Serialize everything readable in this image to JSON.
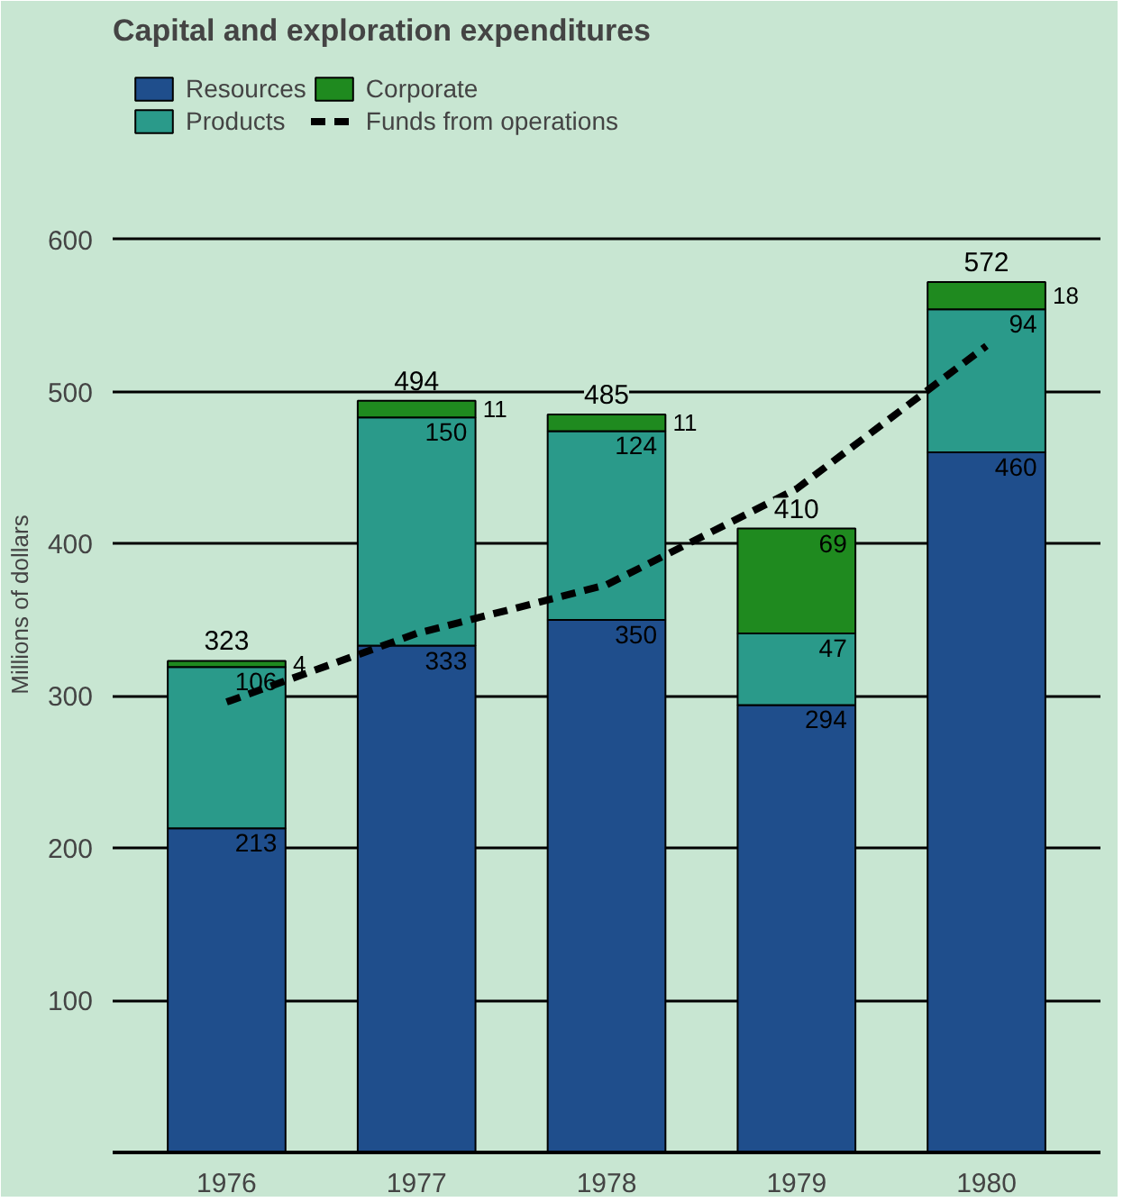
{
  "chart_data": {
    "type": "bar",
    "title": "Capital and exploration expenditures",
    "ylabel": "Millions of dollars",
    "categories": [
      "1976",
      "1977",
      "1978",
      "1979",
      "1980"
    ],
    "stacked": true,
    "series": [
      {
        "name": "Resources",
        "color": "#1f4e8c",
        "values": [
          213,
          333,
          350,
          294,
          460
        ],
        "value_labels": [
          "213",
          "333",
          "350",
          "294",
          "460"
        ]
      },
      {
        "name": "Products",
        "color": "#2a9a8a",
        "values": [
          106,
          150,
          124,
          47,
          94
        ],
        "value_labels": [
          "106",
          "150",
          "124",
          "47",
          "94"
        ]
      },
      {
        "name": "Corporate",
        "color": "#1f8a1f",
        "values": [
          4,
          11,
          11,
          69,
          18
        ],
        "value_labels": [
          "4",
          "11",
          "11",
          "69",
          "18"
        ]
      },
      {
        "name": "Funds from operations",
        "type": "line",
        "color": "#000000",
        "line_style": "dashed",
        "values": [
          296,
          341,
          373,
          436,
          530
        ]
      }
    ],
    "totals": [
      "323",
      "494",
      "485",
      "410",
      "572"
    ],
    "ylim": [
      0,
      720
    ],
    "yticks": [
      100,
      200,
      300,
      400,
      500,
      600
    ],
    "grid": "y",
    "legend": "top left"
  }
}
